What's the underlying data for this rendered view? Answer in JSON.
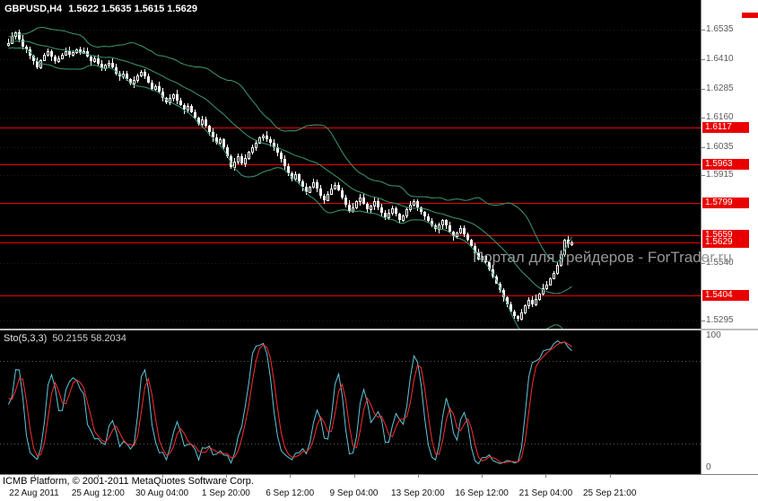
{
  "header": {
    "symbol_tf": "GBPUSD,H4",
    "ohlc": "1.5622 1.5635 1.5615 1.5629"
  },
  "watermark": "Портал для трейдеров - ForTrader.ru",
  "footer": {
    "copyright": "ICMB Platform, © 2001-2011 MetaQuotes Software Corp."
  },
  "colors": {
    "chart_bg": "#000000",
    "candle": "#ffffff",
    "bands": "#3d9970",
    "level": "#e80000",
    "grid": "#1e1e1e",
    "sto_main": "#5fc8dc",
    "sto_signal": "#ff2d2d",
    "sto_levels": "#5a5a5a",
    "axis_text": "#5a5a5a"
  },
  "price_axis": {
    "labels": [
      {
        "price": 1.6535,
        "text": "1.6535"
      },
      {
        "price": 1.641,
        "text": "1.6410"
      },
      {
        "price": 1.6285,
        "text": "1.6285"
      },
      {
        "price": 1.616,
        "text": "1.6160"
      },
      {
        "price": 1.6035,
        "text": "1.6035"
      },
      {
        "price": 1.5915,
        "text": "1.5915"
      },
      {
        "price": 1.554,
        "text": "1.5540"
      },
      {
        "price": 1.5295,
        "text": "1.5295"
      }
    ],
    "boxes": [
      {
        "price": 1.6117,
        "text": "1.6117"
      },
      {
        "price": 1.5963,
        "text": "1.5963"
      },
      {
        "price": 1.5799,
        "text": "1.5799"
      },
      {
        "price": 1.5659,
        "text": "1.5659"
      },
      {
        "price": 1.5629,
        "text": "1.5629"
      },
      {
        "price": 1.5404,
        "text": "1.5404"
      }
    ]
  },
  "sto": {
    "label": "Sto(5,3,3)",
    "values_text": "50.2155 58.2034",
    "scale_top": "100",
    "scale_bottom": "0"
  },
  "chart_data": {
    "type": "candlestick",
    "title": "GBPUSD,H4",
    "symbol": "GBPUSD",
    "timeframe": "H4",
    "y_range": [
      1.5262,
      1.6662
    ],
    "levels": [
      1.6117,
      1.5963,
      1.5799,
      1.5659,
      1.5404
    ],
    "current_price": 1.5629,
    "last_candle": {
      "open": 1.5622,
      "high": 1.5635,
      "low": 1.5615,
      "close": 1.5629
    },
    "x_labels": [
      "22 Aug 2011",
      "25 Aug 12:00",
      "30 Aug 04:00",
      "1 Sep 20:00",
      "6 Sep 12:00",
      "9 Sep 04:00",
      "13 Sep 20:00",
      "16 Sep 12:00",
      "21 Sep 04:00",
      "25 Sep 21:00"
    ],
    "overlays": [
      {
        "name": "Bollinger Bands",
        "period": 20,
        "deviation": 2
      }
    ],
    "subchart": {
      "type": "stochastic",
      "label": "Sto(5,3,3)",
      "k": 5,
      "d": 3,
      "slowing": 3,
      "main": 50.2155,
      "signal": 58.2034,
      "scale": [
        0,
        100
      ],
      "levels": [
        20,
        80
      ]
    },
    "pre_window_closes": [
      1.6455,
      1.647,
      1.648,
      1.6465,
      1.6475,
      1.649,
      1.65,
      1.6485,
      1.647,
      1.648,
      1.6495,
      1.6505,
      1.649,
      1.6478,
      1.6468,
      1.648,
      1.6492,
      1.6486,
      1.6472
    ],
    "closes": [
      1.648,
      1.651,
      1.6525,
      1.6495,
      1.6465,
      1.645,
      1.6425,
      1.64,
      1.6375,
      1.6405,
      1.643,
      1.6445,
      1.642,
      1.64,
      1.6415,
      1.643,
      1.6445,
      1.643,
      1.644,
      1.645,
      1.6435,
      1.6445,
      1.642,
      1.64,
      1.6415,
      1.639,
      1.637,
      1.6385,
      1.6395,
      1.6375,
      1.635,
      1.6335,
      1.635,
      1.6325,
      1.6305,
      1.632,
      1.634,
      1.6355,
      1.6335,
      1.631,
      1.6285,
      1.6295,
      1.627,
      1.6245,
      1.6225,
      1.6245,
      1.626,
      1.6235,
      1.6215,
      1.6195,
      1.621,
      1.6185,
      1.616,
      1.6135,
      1.6155,
      1.6125,
      1.61,
      1.6075,
      1.6055,
      1.607,
      1.6035,
      1.5995,
      1.595,
      1.5975,
      1.5995,
      1.5965,
      1.599,
      1.6015,
      1.6035,
      1.6055,
      1.6075,
      1.6085,
      1.607,
      1.6055,
      1.6035,
      1.601,
      1.5985,
      1.5955,
      1.5925,
      1.59,
      1.592,
      1.589,
      1.5865,
      1.5845,
      1.5865,
      1.5885,
      1.586,
      1.583,
      1.581,
      1.5835,
      1.586,
      1.5875,
      1.585,
      1.582,
      1.579,
      1.5765,
      1.578,
      1.5805,
      1.582,
      1.5795,
      1.577,
      1.5785,
      1.5805,
      1.578,
      1.5755,
      1.5735,
      1.5755,
      1.5775,
      1.575,
      1.5725,
      1.5745,
      1.577,
      1.579,
      1.5805,
      1.578,
      1.576,
      1.574,
      1.572,
      1.57,
      1.5685,
      1.5705,
      1.5725,
      1.57,
      1.5675,
      1.5655,
      1.567,
      1.569,
      1.5665,
      1.564,
      1.5615,
      1.5585,
      1.5555,
      1.557,
      1.5545,
      1.5515,
      1.5485,
      1.5455,
      1.5425,
      1.5395,
      1.5365,
      1.5335,
      1.5315,
      1.5305,
      1.533,
      1.536,
      1.5385,
      1.5365,
      1.539,
      1.541,
      1.5435,
      1.545,
      1.5475,
      1.55,
      1.5535,
      1.558,
      1.564,
      1.5622,
      1.5629
    ]
  }
}
